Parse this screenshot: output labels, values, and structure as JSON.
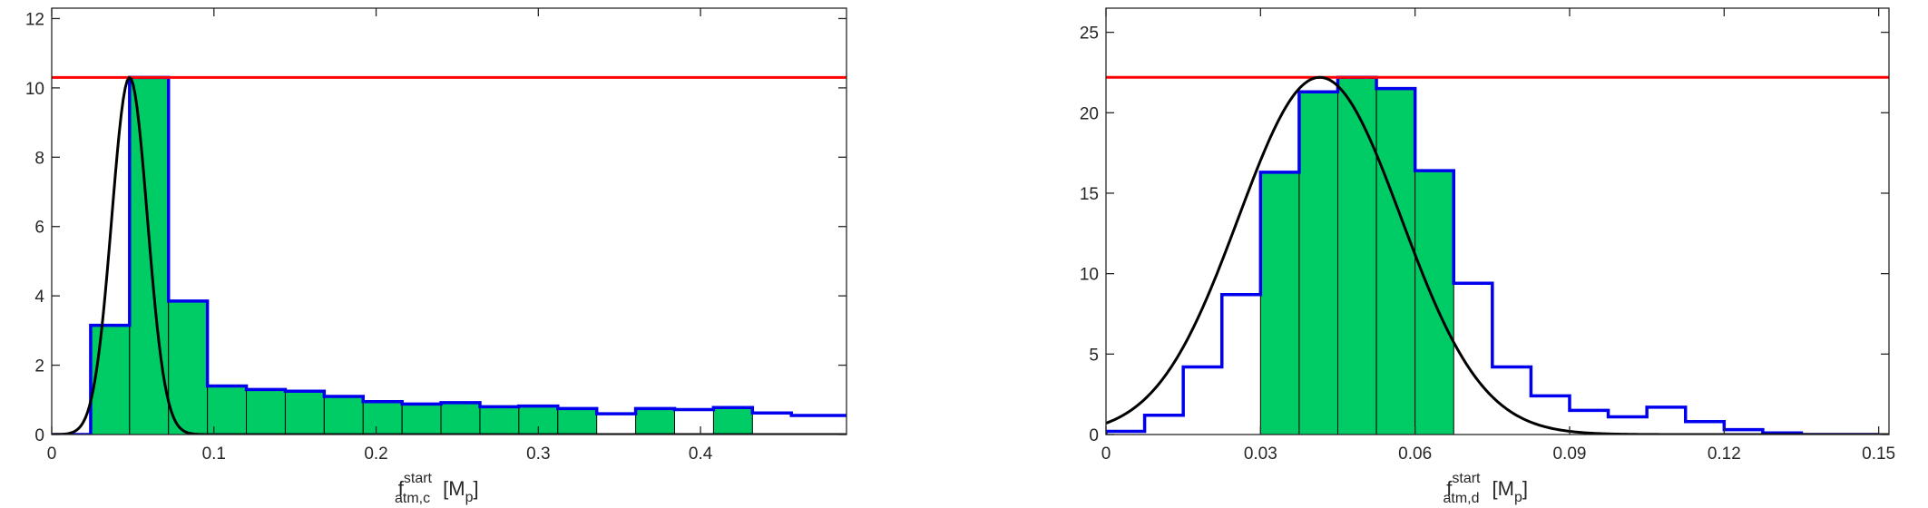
{
  "chart_data": [
    {
      "type": "bar",
      "subtype": "histogram-step",
      "xlim": [
        0,
        0.49
      ],
      "ylim": [
        0,
        12.3
      ],
      "xticks": [
        0,
        0.1,
        0.2,
        0.3,
        0.4
      ],
      "xtick_labels": [
        "0",
        "0.1",
        "0.2",
        "0.3",
        "0.4"
      ],
      "yticks": [
        0,
        2,
        4,
        6,
        8,
        10,
        12
      ],
      "ytick_labels": [
        "0",
        "2",
        "4",
        "6",
        "8",
        "10",
        "12"
      ],
      "xlabel": {
        "main": "f",
        "sup": "start",
        "sub": "atm,c",
        "unit_main": "[M",
        "unit_sub": "p",
        "unit_close": "]"
      },
      "ylabel": "",
      "bin_edges": [
        0,
        0.024,
        0.048,
        0.072,
        0.096,
        0.12,
        0.144,
        0.168,
        0.192,
        0.216,
        0.24,
        0.264,
        0.288,
        0.312,
        0.336,
        0.36,
        0.384,
        0.408,
        0.432,
        0.456,
        0.49
      ],
      "values": [
        0,
        3.15,
        10.3,
        3.85,
        1.4,
        1.3,
        1.25,
        1.1,
        0.95,
        0.88,
        0.92,
        0.8,
        0.82,
        0.75,
        0.6,
        0.75,
        0.72,
        0.78,
        0.62,
        0.55
      ],
      "highlighted_bins": [
        1,
        2,
        3,
        4,
        5,
        6,
        7,
        8,
        9,
        10,
        11,
        12,
        13,
        15,
        17
      ],
      "peak_line": 10.3,
      "fit_curve": {
        "type": "gaussian",
        "mu": 0.048,
        "sigma": 0.011,
        "amplitude": 10.3
      },
      "colors": {
        "histogram": "#0000ee",
        "fill": "#00cc66",
        "peak_line": "#ff0000",
        "fit": "#000000"
      }
    },
    {
      "type": "bar",
      "subtype": "histogram-step",
      "xlim": [
        0,
        0.152
      ],
      "ylim": [
        0,
        26.5
      ],
      "xticks": [
        0,
        0.03,
        0.06,
        0.09,
        0.12,
        0.15
      ],
      "xtick_labels": [
        "0",
        "0.03",
        "0.06",
        "0.09",
        "0.12",
        "0.15"
      ],
      "yticks": [
        0,
        5,
        10,
        15,
        20,
        25
      ],
      "ytick_labels": [
        "0",
        "5",
        "10",
        "15",
        "20",
        "25"
      ],
      "xlabel": {
        "main": "f",
        "sup": "start",
        "sub": "atm,d",
        "unit_main": "[M",
        "unit_sub": "p",
        "unit_close": "]"
      },
      "ylabel": "",
      "bin_edges": [
        0,
        0.0075,
        0.015,
        0.0225,
        0.03,
        0.0375,
        0.045,
        0.0525,
        0.06,
        0.0675,
        0.075,
        0.0825,
        0.09,
        0.0975,
        0.105,
        0.1125,
        0.12,
        0.1275,
        0.135,
        0.1425,
        0.15
      ],
      "values": [
        0.2,
        1.2,
        4.2,
        8.7,
        16.3,
        21.3,
        22.2,
        21.5,
        16.4,
        9.4,
        4.2,
        2.4,
        1.5,
        1.1,
        1.7,
        0.8,
        0.3,
        0.1,
        0,
        0
      ],
      "highlighted_bins": [
        4,
        5,
        6,
        7,
        8
      ],
      "peak_line": 22.2,
      "fit_curve": {
        "type": "gaussian",
        "mu": 0.0415,
        "sigma": 0.0158,
        "amplitude": 22.2
      },
      "colors": {
        "histogram": "#0000ee",
        "fill": "#00cc66",
        "peak_line": "#ff0000",
        "fit": "#000000"
      }
    }
  ]
}
